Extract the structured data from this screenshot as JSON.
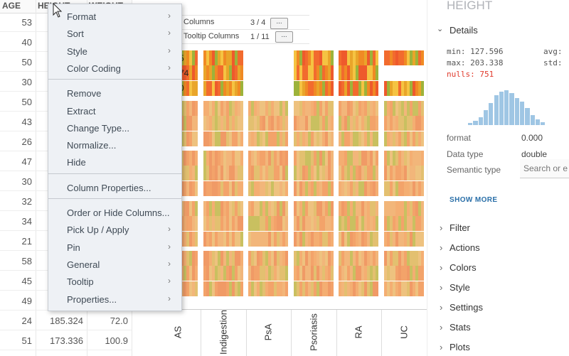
{
  "table": {
    "columns": [
      "AGE",
      "HEIGHT",
      "WEIGHT"
    ],
    "rows": [
      [
        "53"
      ],
      [
        "40"
      ],
      [
        "50"
      ],
      [
        "30"
      ],
      [
        "50"
      ],
      [
        "43"
      ],
      [
        "26"
      ],
      [
        "47"
      ],
      [
        "30"
      ],
      [
        "32"
      ],
      [
        "34"
      ],
      [
        "21"
      ],
      [
        "58"
      ],
      [
        "45"
      ],
      [
        "49"
      ],
      [
        "24",
        "185.324",
        "72.0"
      ],
      [
        "51",
        "173.336",
        "100.9"
      ]
    ]
  },
  "menu": {
    "groups": [
      [
        {
          "label": "Format",
          "submenu": true
        },
        {
          "label": "Sort",
          "submenu": true
        },
        {
          "label": "Style",
          "submenu": true
        },
        {
          "label": "Color Coding",
          "submenu": true
        }
      ],
      [
        {
          "label": "Remove",
          "submenu": false
        },
        {
          "label": "Extract",
          "submenu": false
        },
        {
          "label": "Change Type...",
          "submenu": false
        },
        {
          "label": "Normalize...",
          "submenu": false
        },
        {
          "label": "Hide",
          "submenu": false
        }
      ],
      [
        {
          "label": "Column Properties...",
          "submenu": false
        }
      ],
      [
        {
          "label": "Order or Hide Columns...",
          "submenu": false
        },
        {
          "label": "Pick Up / Apply",
          "submenu": true
        },
        {
          "label": "Pin",
          "submenu": true
        },
        {
          "label": "General",
          "submenu": true
        },
        {
          "label": "Tooltip",
          "submenu": true
        },
        {
          "label": "Properties...",
          "submenu": true
        }
      ]
    ]
  },
  "grid_settings": {
    "columns_label": "Columns",
    "columns_count": "3 / 4",
    "tooltip_label": "Tooltip Columns",
    "tooltip_count": "1 / 11",
    "button": "..."
  },
  "heatmap": {
    "categories": [
      "AS",
      "Indigestion",
      "PsA",
      "Psoriasis",
      "RA",
      "UC"
    ],
    "cell_text": [
      "5",
      "74",
      "0"
    ]
  },
  "panel": {
    "title": "HEIGHT",
    "details": "Details",
    "stats": [
      {
        "label": "min:",
        "value": "127.596"
      },
      {
        "label": "avg:"
      },
      {
        "label": "max:",
        "value": "203.338"
      },
      {
        "label": "std:"
      }
    ],
    "nulls": "nulls: 751",
    "histogram": [
      3,
      6,
      12,
      22,
      33,
      45,
      50,
      52,
      48,
      40,
      35,
      25,
      15,
      8,
      4
    ],
    "properties": [
      {
        "label": "format",
        "value": "0.000"
      },
      {
        "label": "Data type",
        "value": "double"
      },
      {
        "label": "Semantic type",
        "placeholder": "Search or e"
      }
    ],
    "show_more": "SHOW MORE",
    "sections": [
      "Filter",
      "Actions",
      "Colors",
      "Style",
      "Settings",
      "Stats",
      "Plots"
    ]
  }
}
